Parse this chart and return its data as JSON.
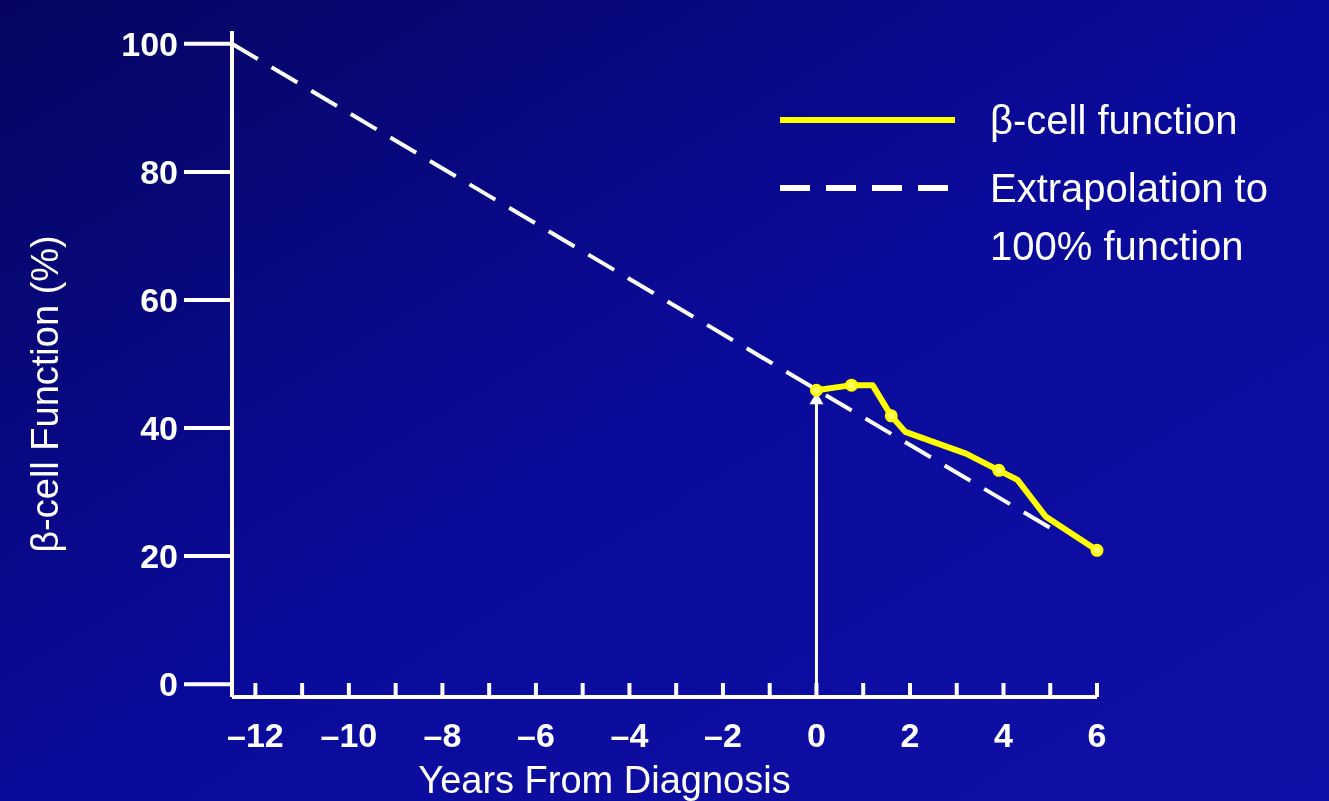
{
  "chart_data": {
    "type": "line",
    "xlabel": "Years From Diagnosis",
    "ylabel": "β-cell Function (%)",
    "xlim": [
      -12.5,
      6
    ],
    "ylim": [
      -2,
      102
    ],
    "xticks": [
      {
        "value": -12,
        "label": "–12"
      },
      {
        "value": -11,
        "label": null
      },
      {
        "value": -10,
        "label": "–10"
      },
      {
        "value": -9,
        "label": null
      },
      {
        "value": -8,
        "label": "–8"
      },
      {
        "value": -7,
        "label": null
      },
      {
        "value": -6,
        "label": "–6"
      },
      {
        "value": -5,
        "label": null
      },
      {
        "value": -4,
        "label": "–4"
      },
      {
        "value": -3,
        "label": null
      },
      {
        "value": -2,
        "label": "–2"
      },
      {
        "value": -1,
        "label": null
      },
      0,
      {
        "value": 1,
        "label": null
      },
      2,
      {
        "value": 3,
        "label": null
      },
      4,
      {
        "value": 5,
        "label": null
      },
      6
    ],
    "yticks": [
      0,
      20,
      40,
      60,
      80,
      100
    ],
    "grid": false,
    "legend": "top right",
    "series": [
      {
        "name": "β-cell function",
        "color": "#ffff00",
        "line_style": "solid",
        "marker": "none",
        "x": [
          0,
          0.75,
          1.2,
          1.6,
          1.9,
          3.2,
          3.9,
          4.3,
          4.9,
          6
        ],
        "values": [
          45.9,
          46.7,
          46.7,
          41.9,
          39.4,
          36,
          33.4,
          31.9,
          26.2,
          20.9
        ]
      },
      {
        "type": "scatter",
        "color": "#ffff00",
        "marker": "circle",
        "x": [
          0,
          0.75,
          1.6,
          3.9,
          6
        ],
        "values": [
          45.9,
          46.7,
          41.9,
          33.4,
          20.9
        ]
      },
      {
        "name": "Extrapolation to 100% function",
        "color": "#ffffff",
        "line_style": "dashed",
        "marker": "none",
        "x": [
          -12.5,
          5
        ],
        "values": [
          100,
          24.4
        ]
      }
    ]
  }
}
